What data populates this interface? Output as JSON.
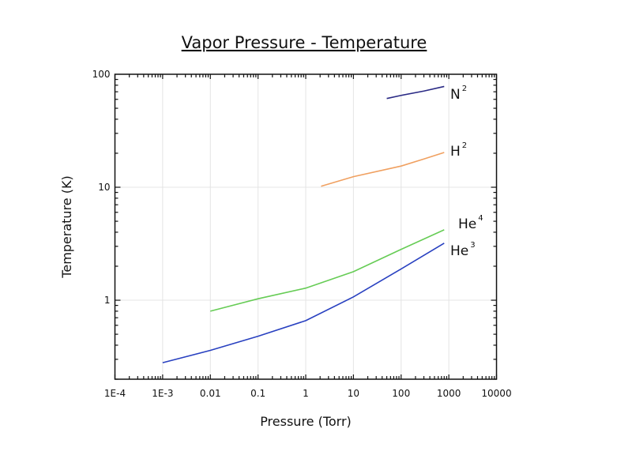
{
  "chart_data": {
    "type": "line",
    "title": "Vapor Pressure - Temperature",
    "xlabel": "Pressure (Torr)",
    "ylabel": "Temperature (K)",
    "xscale": "log",
    "yscale": "log",
    "xlim": [
      0.0001,
      10000
    ],
    "ylim": [
      0.2,
      100
    ],
    "grid": true,
    "x_tick_labels": [
      {
        "value": 0.0001,
        "label": "1E-4"
      },
      {
        "value": 0.001,
        "label": "1E-3"
      },
      {
        "value": 0.01,
        "label": "0.01"
      },
      {
        "value": 0.1,
        "label": "0.1"
      },
      {
        "value": 1,
        "label": "1"
      },
      {
        "value": 10,
        "label": "10"
      },
      {
        "value": 100,
        "label": "100"
      },
      {
        "value": 1000,
        "label": "1000"
      },
      {
        "value": 10000,
        "label": "10000"
      }
    ],
    "y_tick_labels": [
      {
        "value": 1,
        "label": "1"
      },
      {
        "value": 10,
        "label": "10"
      },
      {
        "value": 100,
        "label": "100"
      }
    ],
    "series": [
      {
        "name": "N",
        "superscript": "2",
        "color": "#2a2a85",
        "x": [
          50,
          100,
          300,
          800
        ],
        "y": [
          61,
          65,
          71,
          78
        ]
      },
      {
        "name": "H",
        "superscript": "2",
        "color": "#f0a060",
        "x": [
          2.1,
          10,
          100,
          300,
          800
        ],
        "y": [
          10.2,
          12.4,
          15.4,
          17.8,
          20.3
        ]
      },
      {
        "name": "He",
        "superscript": "4",
        "color": "#66cc55",
        "x": [
          0.01,
          0.1,
          1,
          10,
          100,
          800
        ],
        "y": [
          0.8,
          1.03,
          1.28,
          1.79,
          2.82,
          4.2
        ]
      },
      {
        "name": "He",
        "superscript": "3",
        "color": "#2840c0",
        "x": [
          0.001,
          0.01,
          0.1,
          1,
          10,
          100,
          800
        ],
        "y": [
          0.28,
          0.36,
          0.48,
          0.66,
          1.07,
          1.89,
          3.2
        ]
      }
    ]
  }
}
